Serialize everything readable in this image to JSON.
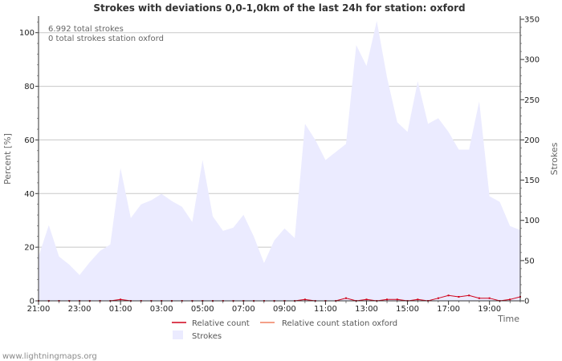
{
  "chart_data": {
    "type": "area",
    "title": "Strokes with deviations 0,0-1,0km of the last 24h for station: oxford",
    "xlabel": "Time",
    "ylabel_left": "Percent   [%]",
    "ylabel_right": "Strokes",
    "ylim_left": [
      0,
      105
    ],
    "ylim_right": [
      0,
      350
    ],
    "yticks_left": [
      "0",
      "20",
      "40",
      "60",
      "80",
      "100"
    ],
    "yticks_right": [
      "0",
      "50",
      "100",
      "150",
      "200",
      "250",
      "300",
      "350"
    ],
    "xtick_labels": [
      "21:00",
      "23:00",
      "01:00",
      "03:00",
      "05:00",
      "07:00",
      "09:00",
      "11:00",
      "13:00",
      "15:00",
      "17:00",
      "19:00"
    ],
    "annotations": [
      "6.992 total strokes",
      "0 total strokes station oxford"
    ],
    "legend": {
      "relative_count": "Relative count",
      "relative_count_station": "Relative count station oxford",
      "strokes": "Strokes"
    },
    "series": [
      {
        "name": "Strokes",
        "axis": "right",
        "values": [
          55,
          94,
          55,
          45,
          32,
          48,
          62,
          70,
          165,
          103,
          120,
          125,
          133,
          124,
          117,
          98,
          175,
          105,
          87,
          91,
          107,
          80,
          47,
          75,
          90,
          78,
          220,
          200,
          175,
          185,
          195,
          318,
          292,
          348,
          278,
          222,
          210,
          273,
          220,
          227,
          210,
          188,
          188,
          248,
          130,
          123,
          93,
          88
        ]
      },
      {
        "name": "Relative count",
        "axis": "left",
        "values": [
          0,
          0,
          0,
          0,
          0,
          0,
          0,
          0,
          0.5,
          0,
          0,
          0,
          0,
          0,
          0,
          0,
          0,
          0,
          0,
          0,
          0,
          0,
          0,
          0,
          0,
          0,
          0.5,
          0,
          0,
          0,
          1,
          0,
          0.5,
          0,
          0.5,
          0.5,
          0,
          0.5,
          0,
          1,
          2,
          1.5,
          2,
          1,
          1,
          0,
          0.5,
          1.5
        ]
      },
      {
        "name": "Relative count station oxford",
        "axis": "left",
        "values": [
          0,
          0,
          0,
          0,
          0,
          0,
          0,
          0,
          0,
          0,
          0,
          0,
          0,
          0,
          0,
          0,
          0,
          0,
          0,
          0,
          0,
          0,
          0,
          0,
          0,
          0,
          0,
          0,
          0,
          0,
          0,
          0,
          0,
          0,
          0,
          0,
          0,
          0,
          0,
          0,
          0,
          0,
          0,
          0,
          0,
          0,
          0,
          0
        ]
      }
    ]
  },
  "colors": {
    "strokes_fill": "#ebebff",
    "relative_count": "#d0021b",
    "relative_count_station": "#f08060",
    "grid": "#c8c8c8"
  },
  "footer": "www.lightningmaps.org"
}
